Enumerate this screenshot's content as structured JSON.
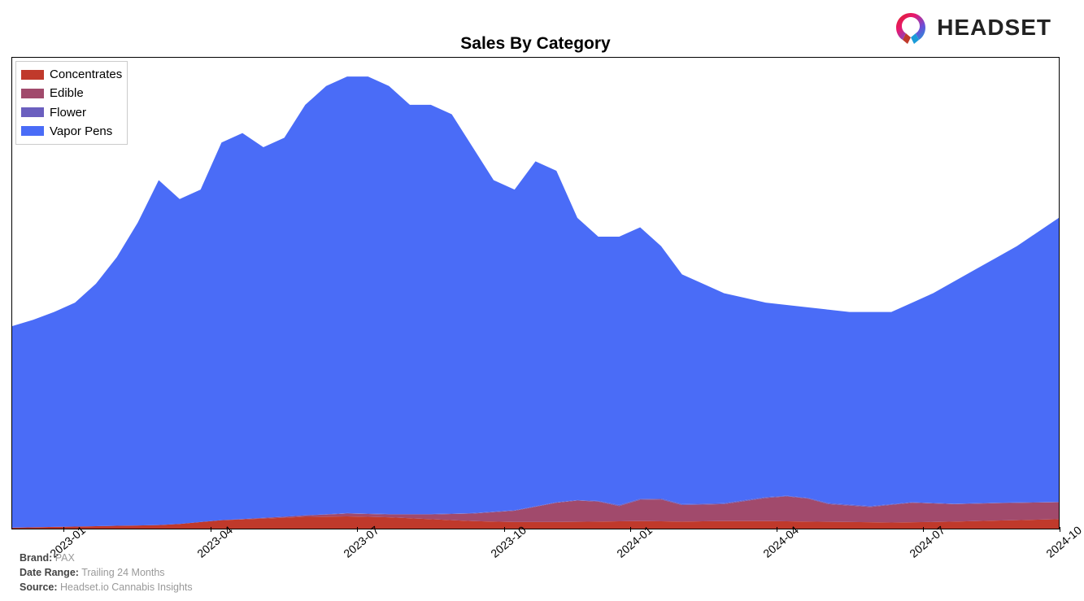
{
  "logo": {
    "text": "HEADSET"
  },
  "chart": {
    "type": "stacked-area",
    "title": "Sales By Category",
    "title_fontsize": 21,
    "title_fontweight": 700,
    "background_color": "#ffffff",
    "border_color": "#000000",
    "x_categories": [
      "2023-01",
      "2023-04",
      "2023-07",
      "2023-10",
      "2024-01",
      "2024-04",
      "2024-07",
      "2024-10"
    ],
    "x_positions_pct": [
      5,
      19,
      33,
      47,
      59,
      73,
      87,
      100
    ],
    "xtick_label_fontsize": 14,
    "xtick_rotation_deg": -40,
    "ylim": [
      0,
      100
    ],
    "series": [
      {
        "name": "Concentrates",
        "color": "#c0392b"
      },
      {
        "name": "Edible",
        "color": "#a14a6c"
      },
      {
        "name": "Flower",
        "color": "#6b5fbf"
      },
      {
        "name": "Vapor Pens",
        "color": "#4a6cf7"
      }
    ],
    "cum_paths_pct_from_bottom": {
      "concentrates": [
        [
          0,
          0.2
        ],
        [
          5,
          0.4
        ],
        [
          10,
          0.6
        ],
        [
          15,
          0.8
        ],
        [
          20,
          1.8
        ],
        [
          25,
          2.2
        ],
        [
          28,
          2.5
        ],
        [
          32,
          2.6
        ],
        [
          36,
          2.4
        ],
        [
          40,
          2.0
        ],
        [
          44,
          1.6
        ],
        [
          48,
          1.4
        ],
        [
          52,
          1.4
        ],
        [
          56,
          1.5
        ],
        [
          60,
          1.6
        ],
        [
          64,
          1.5
        ],
        [
          68,
          1.6
        ],
        [
          72,
          1.6
        ],
        [
          76,
          1.5
        ],
        [
          80,
          1.4
        ],
        [
          84,
          1.3
        ],
        [
          88,
          1.4
        ],
        [
          92,
          1.6
        ],
        [
          96,
          1.8
        ],
        [
          100,
          2.0
        ]
      ],
      "edible": [
        [
          0,
          0.2
        ],
        [
          5,
          0.4
        ],
        [
          10,
          0.6
        ],
        [
          15,
          0.8
        ],
        [
          20,
          1.8
        ],
        [
          25,
          2.4
        ],
        [
          28,
          2.8
        ],
        [
          32,
          3.2
        ],
        [
          36,
          3.0
        ],
        [
          40,
          3.0
        ],
        [
          44,
          3.2
        ],
        [
          48,
          3.8
        ],
        [
          52,
          5.5
        ],
        [
          55,
          6.2
        ],
        [
          58,
          4.8
        ],
        [
          61,
          6.8
        ],
        [
          64,
          5.0
        ],
        [
          68,
          5.2
        ],
        [
          72,
          6.5
        ],
        [
          75,
          7.0
        ],
        [
          78,
          5.2
        ],
        [
          82,
          4.6
        ],
        [
          86,
          5.5
        ],
        [
          90,
          5.2
        ],
        [
          94,
          5.4
        ],
        [
          100,
          5.6
        ]
      ],
      "flower": [
        [
          0,
          0.2
        ],
        [
          5,
          0.4
        ],
        [
          10,
          0.6
        ],
        [
          15,
          0.8
        ],
        [
          20,
          1.8
        ],
        [
          25,
          2.4
        ],
        [
          28,
          2.8
        ],
        [
          32,
          3.3
        ],
        [
          36,
          3.1
        ],
        [
          40,
          3.1
        ],
        [
          44,
          3.3
        ],
        [
          48,
          3.9
        ],
        [
          52,
          5.6
        ],
        [
          55,
          6.3
        ],
        [
          58,
          5.0
        ],
        [
          61,
          7.0
        ],
        [
          64,
          5.2
        ],
        [
          68,
          5.4
        ],
        [
          72,
          6.7
        ],
        [
          75,
          7.1
        ],
        [
          78,
          5.4
        ],
        [
          82,
          4.8
        ],
        [
          86,
          5.6
        ],
        [
          90,
          5.3
        ],
        [
          94,
          5.5
        ],
        [
          100,
          5.7
        ]
      ],
      "vapor": [
        [
          0,
          43
        ],
        [
          3,
          45
        ],
        [
          6,
          48
        ],
        [
          9,
          54
        ],
        [
          12,
          65
        ],
        [
          14,
          74
        ],
        [
          16,
          70
        ],
        [
          18,
          72
        ],
        [
          20,
          82
        ],
        [
          22,
          84
        ],
        [
          24,
          81
        ],
        [
          26,
          83
        ],
        [
          28,
          90
        ],
        [
          30,
          94
        ],
        [
          32,
          96
        ],
        [
          34,
          96
        ],
        [
          36,
          94
        ],
        [
          38,
          90
        ],
        [
          40,
          90
        ],
        [
          42,
          88
        ],
        [
          44,
          81
        ],
        [
          46,
          74
        ],
        [
          48,
          72
        ],
        [
          50,
          78
        ],
        [
          52,
          76
        ],
        [
          54,
          66
        ],
        [
          56,
          62
        ],
        [
          58,
          62
        ],
        [
          60,
          64
        ],
        [
          62,
          60
        ],
        [
          64,
          54
        ],
        [
          68,
          50
        ],
        [
          72,
          48
        ],
        [
          76,
          47
        ],
        [
          80,
          46
        ],
        [
          84,
          46
        ],
        [
          88,
          50
        ],
        [
          92,
          55
        ],
        [
          96,
          60
        ],
        [
          100,
          66
        ]
      ]
    },
    "legend": {
      "position": "top-left",
      "fontsize": 15,
      "border_color": "#cccccc",
      "background_color": "#ffffff",
      "swatch_width": 28,
      "swatch_height": 12
    }
  },
  "meta": {
    "brand_label": "Brand:",
    "brand_value": "PAX",
    "daterange_label": "Date Range:",
    "daterange_value": "Trailing 24 Months",
    "source_label": "Source:",
    "source_value": "Headset.io Cannabis Insights",
    "label_color": "#444444",
    "value_color": "#999999",
    "fontsize": 12.5
  }
}
